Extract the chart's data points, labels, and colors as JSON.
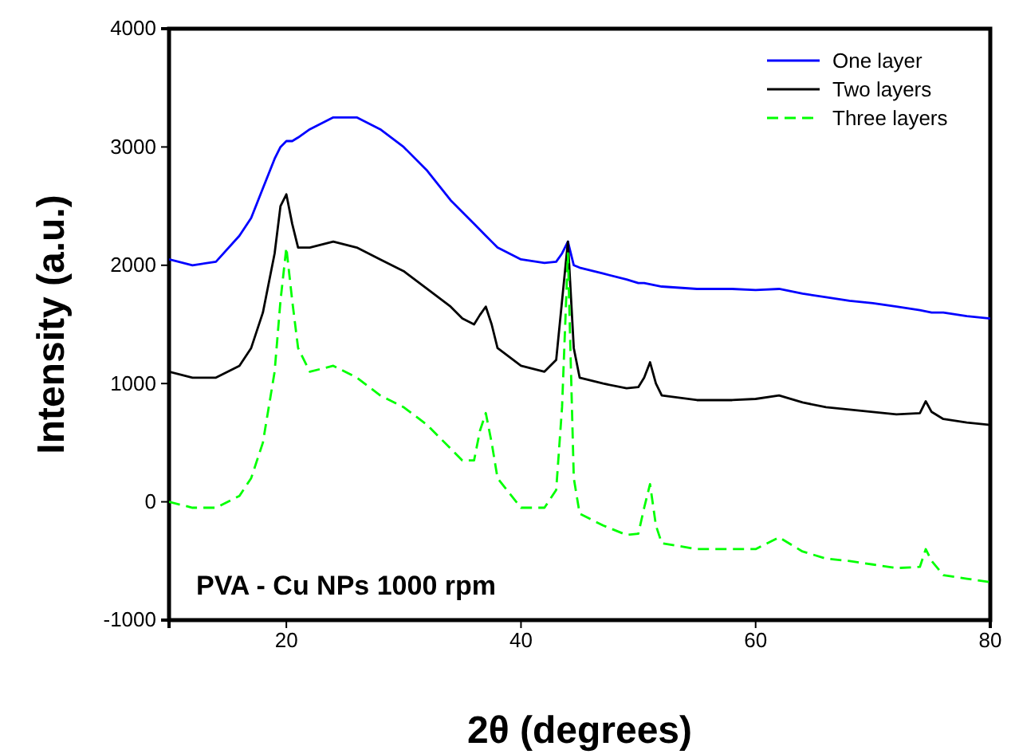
{
  "chart_data": {
    "type": "line",
    "xlabel": "2θ (degrees)",
    "ylabel": "Intensity (a.u.)",
    "x": [
      10,
      12,
      14,
      16,
      17,
      18,
      19,
      19.5,
      20,
      20.5,
      21,
      22,
      24,
      26,
      28,
      30,
      32,
      34,
      35,
      36,
      36.5,
      37,
      37.5,
      38,
      40,
      42,
      43,
      43.5,
      44,
      44.5,
      45,
      47,
      49,
      50,
      50.5,
      51,
      51.5,
      52,
      55,
      58,
      60,
      62,
      64,
      66,
      68,
      70,
      72,
      74,
      74.5,
      75,
      76,
      78,
      80
    ],
    "series": [
      {
        "name": "One layer",
        "color": "#0000ff",
        "line_style": "solid",
        "values": [
          2050,
          2000,
          2030,
          2250,
          2400,
          2650,
          2900,
          3000,
          3050,
          3050,
          3080,
          3150,
          3250,
          3250,
          3150,
          3000,
          2800,
          2550,
          2450,
          2350,
          2300,
          2250,
          2200,
          2150,
          2050,
          2020,
          2030,
          2100,
          2200,
          2000,
          1980,
          1930,
          1880,
          1850,
          1850,
          1840,
          1830,
          1820,
          1800,
          1800,
          1790,
          1800,
          1760,
          1730,
          1700,
          1680,
          1650,
          1620,
          1610,
          1600,
          1600,
          1570,
          1550
        ]
      },
      {
        "name": "Two layers",
        "color": "#000000",
        "line_style": "solid",
        "values": [
          1100,
          1050,
          1050,
          1150,
          1300,
          1600,
          2100,
          2500,
          2600,
          2350,
          2150,
          2150,
          2200,
          2150,
          2050,
          1950,
          1800,
          1650,
          1550,
          1500,
          1580,
          1650,
          1500,
          1300,
          1150,
          1100,
          1200,
          1700,
          2200,
          1300,
          1050,
          1000,
          960,
          970,
          1050,
          1180,
          1000,
          900,
          860,
          860,
          870,
          900,
          840,
          800,
          780,
          760,
          740,
          750,
          850,
          760,
          700,
          670,
          650
        ]
      },
      {
        "name": "Three layers",
        "color": "#00ff00",
        "line_style": "dashed",
        "values": [
          0,
          -50,
          -50,
          50,
          200,
          500,
          1100,
          1700,
          2150,
          1700,
          1300,
          1100,
          1150,
          1050,
          900,
          800,
          650,
          450,
          350,
          350,
          600,
          750,
          500,
          200,
          -50,
          -50,
          100,
          800,
          2100,
          200,
          -100,
          -200,
          -280,
          -270,
          -50,
          150,
          -200,
          -350,
          -400,
          -400,
          -400,
          -300,
          -420,
          -480,
          -500,
          -530,
          -560,
          -550,
          -400,
          -500,
          -620,
          -650,
          -680
        ]
      }
    ],
    "xlim": [
      10,
      80
    ],
    "xticks": [
      20,
      40,
      60,
      80
    ],
    "ylim": [
      -1000,
      4000
    ],
    "yticks": [
      -1000,
      0,
      1000,
      2000,
      3000,
      4000
    ],
    "grid": false,
    "legend": "top right",
    "annotations": [
      "PVA - Cu NPs 1000 rpm"
    ]
  }
}
